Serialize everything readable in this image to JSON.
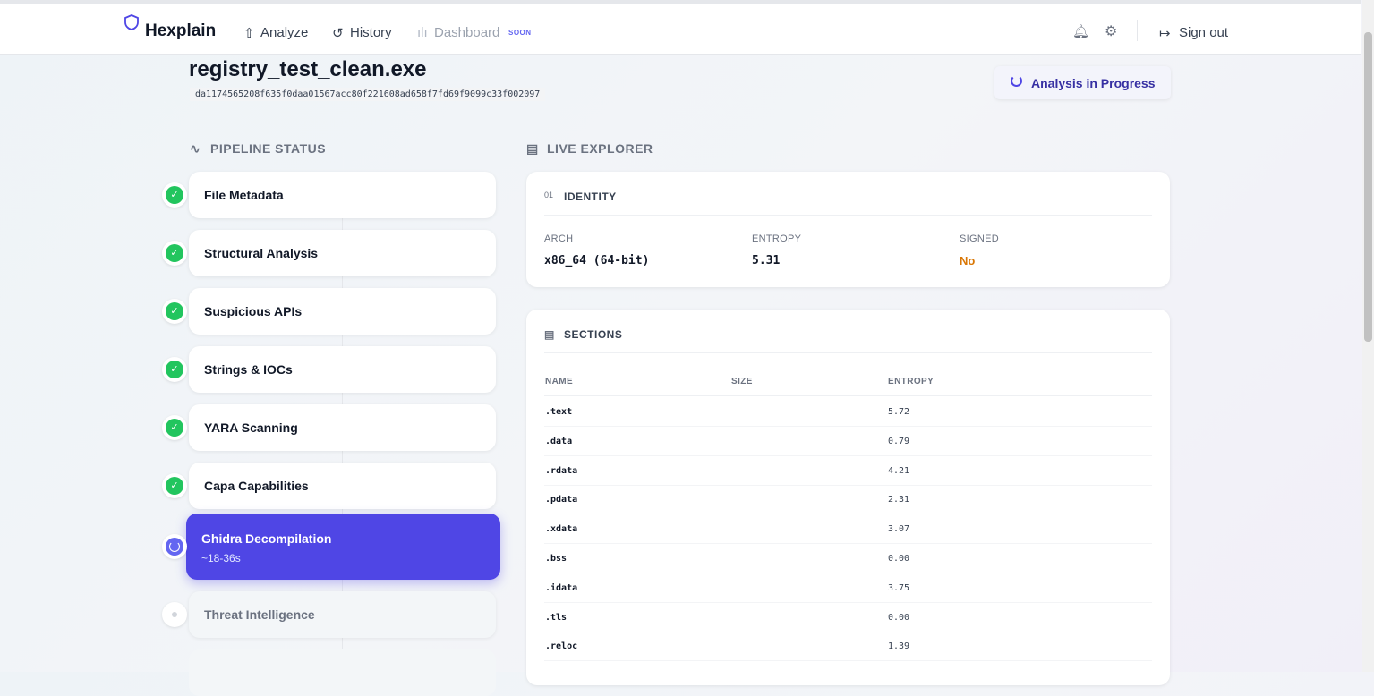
{
  "nav": {
    "brand": "Hexplain",
    "links": [
      "Analyze",
      "History",
      "Dashboard"
    ],
    "badge": "SOON",
    "sign_out": "Sign out"
  },
  "file": {
    "name": "registry_test_clean.exe",
    "hash": "da1174565208f635f0daa01567acc80f221608ad658f7fd69f9099c33f002097"
  },
  "status": "Analysis in Progress",
  "pipeline": {
    "title": "PIPELINE STATUS",
    "steps": [
      {
        "label": "File Metadata",
        "state": "done"
      },
      {
        "label": "Structural Analysis",
        "state": "done"
      },
      {
        "label": "Suspicious APIs",
        "state": "done"
      },
      {
        "label": "Strings & IOCs",
        "state": "done"
      },
      {
        "label": "YARA Scanning",
        "state": "done"
      },
      {
        "label": "Capa Capabilities",
        "state": "done"
      },
      {
        "label": "Ghidra Decompilation",
        "state": "active",
        "eta": "~18-36s"
      },
      {
        "label": "Threat Intelligence",
        "state": "pending"
      }
    ]
  },
  "explorer": {
    "title": "LIVE EXPLORER",
    "identity": {
      "title": "IDENTITY",
      "fields": [
        {
          "label": "ARCH",
          "value": "x86_64 (64-bit)"
        },
        {
          "label": "ENTROPY",
          "value": "5.31"
        },
        {
          "label": "SIGNED",
          "value": "No"
        }
      ]
    },
    "sections": {
      "title": "SECTIONS",
      "columns": [
        "NAME",
        "SIZE",
        "ENTROPY"
      ],
      "rows": [
        [
          ".text",
          "5.72"
        ],
        [
          ".data",
          "0.79"
        ],
        [
          ".rdata",
          "4.21"
        ],
        [
          ".pdata",
          "2.31"
        ],
        [
          ".xdata",
          "3.07"
        ],
        [
          ".bss",
          "0.00"
        ],
        [
          ".idata",
          "3.75"
        ],
        [
          ".tls",
          "0.00"
        ],
        [
          ".reloc",
          "1.39"
        ]
      ]
    }
  }
}
